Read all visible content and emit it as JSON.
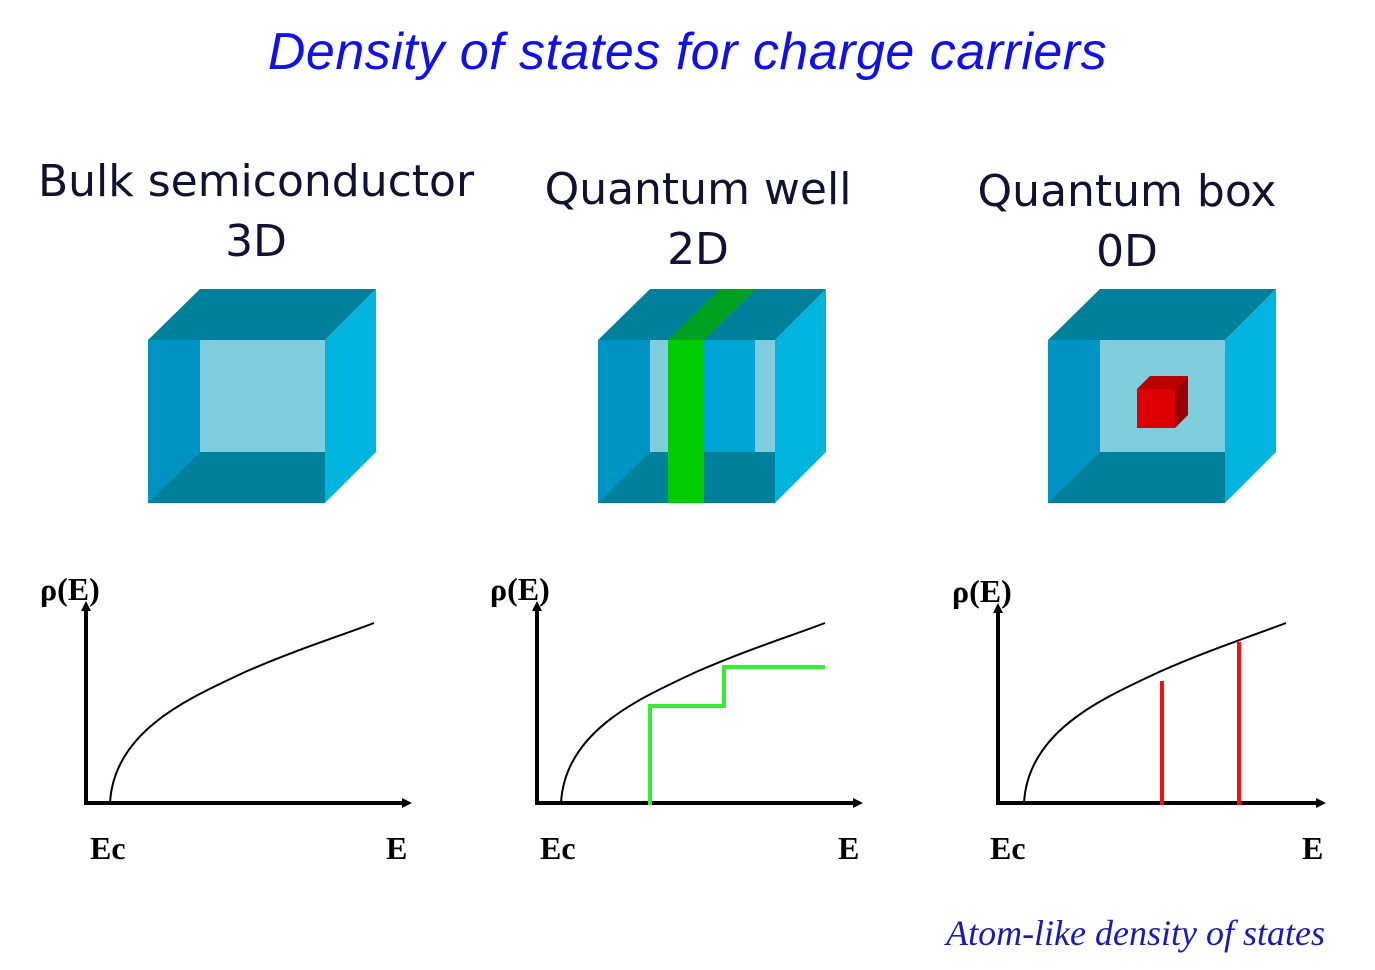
{
  "title": "Density of states for charge carriers",
  "columns": [
    {
      "name": "Bulk semiconductor",
      "dim": "3D"
    },
    {
      "name": "Quantum well",
      "dim": "2D"
    },
    {
      "name": "Quantum box",
      "dim": "0D"
    }
  ],
  "axes": {
    "y_label": "ρ(E)",
    "x_origin_label": "Ec",
    "x_label": "E"
  },
  "footer": "Atom-like density of states",
  "colors": {
    "title": "#1010e8",
    "cube_front": "#00a5d5",
    "cube_top": "#00809a",
    "cube_side": "#00b4e0",
    "cube_inner": "#80cde0",
    "well": "#00cc00",
    "well_top": "#00a020",
    "step": "#33ee33",
    "dot": "#dd0000",
    "line": "#ee1111"
  }
}
